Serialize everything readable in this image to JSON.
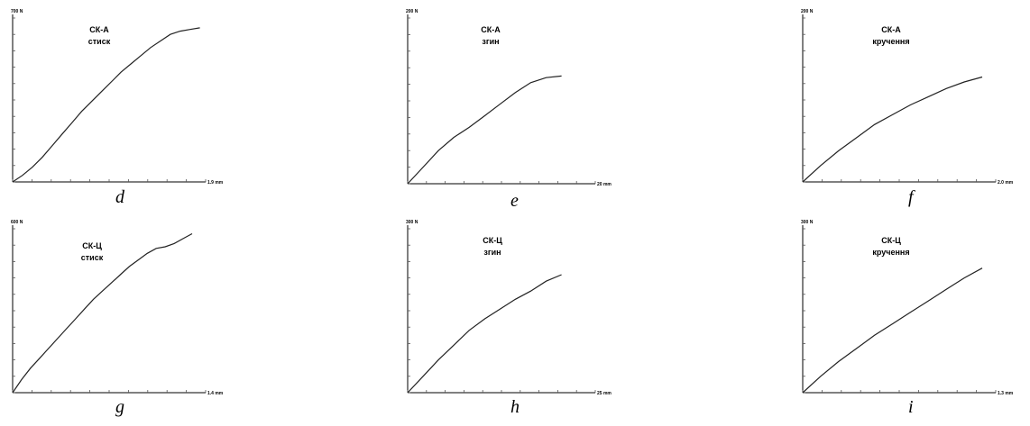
{
  "chart_data": [
    {
      "id": "d",
      "type": "line",
      "caption": "d",
      "title": "СК-А",
      "subtitle": "стиск",
      "y_max_label": "700 N",
      "x_max_label": "1.9 mm",
      "x": [
        0,
        0.1,
        0.2,
        0.3,
        0.4,
        0.5,
        0.6,
        0.7,
        0.8,
        0.9,
        1.0,
        1.1,
        1.2,
        1.3,
        1.4,
        1.5,
        1.6,
        1.7,
        1.8,
        1.9
      ],
      "y": [
        0,
        0.04,
        0.09,
        0.15,
        0.22,
        0.29,
        0.36,
        0.43,
        0.49,
        0.55,
        0.61,
        0.67,
        0.72,
        0.77,
        0.82,
        0.86,
        0.9,
        0.92,
        0.93,
        0.94
      ]
    },
    {
      "id": "e",
      "type": "line",
      "caption": "e",
      "title": "СК-А",
      "subtitle": "згин",
      "y_max_label": "200 N",
      "x_max_label": "20 mm",
      "x": [
        0,
        0.1,
        0.2,
        0.3,
        0.4,
        0.5,
        0.6,
        0.7,
        0.8,
        0.9,
        1.0
      ],
      "y": [
        0,
        0.1,
        0.2,
        0.28,
        0.34,
        0.41,
        0.48,
        0.55,
        0.61,
        0.64,
        0.65
      ]
    },
    {
      "id": "f",
      "type": "line",
      "caption": "f",
      "title": "СК-А",
      "subtitle": "кручення",
      "y_max_label": "200 N",
      "x_max_label": "2.0 mm",
      "x": [
        0,
        0.1,
        0.2,
        0.3,
        0.4,
        0.5,
        0.6,
        0.7,
        0.8,
        0.9,
        1.0
      ],
      "y": [
        0,
        0.1,
        0.19,
        0.27,
        0.35,
        0.41,
        0.47,
        0.52,
        0.57,
        0.61,
        0.64
      ]
    },
    {
      "id": "g",
      "type": "line",
      "caption": "g",
      "title": "СК-Ц",
      "subtitle": "стиск",
      "y_max_label": "600 N",
      "x_max_label": "1.4 mm",
      "x": [
        0,
        0.05,
        0.1,
        0.15,
        0.2,
        0.25,
        0.3,
        0.35,
        0.4,
        0.45,
        0.5,
        0.55,
        0.6,
        0.65,
        0.7,
        0.75,
        0.8,
        0.85,
        0.9,
        0.95,
        1.0
      ],
      "y": [
        0,
        0.08,
        0.15,
        0.21,
        0.27,
        0.33,
        0.39,
        0.45,
        0.51,
        0.57,
        0.62,
        0.67,
        0.72,
        0.77,
        0.81,
        0.85,
        0.88,
        0.89,
        0.91,
        0.94,
        0.97
      ]
    },
    {
      "id": "h",
      "type": "line",
      "caption": "h",
      "title": "СК-Ц",
      "subtitle": "згин",
      "y_max_label": "300 N",
      "x_max_label": "25 mm",
      "x": [
        0,
        0.1,
        0.2,
        0.3,
        0.4,
        0.5,
        0.6,
        0.7,
        0.8,
        0.9,
        1.0
      ],
      "y": [
        0,
        0.1,
        0.2,
        0.29,
        0.38,
        0.45,
        0.51,
        0.57,
        0.62,
        0.68,
        0.72
      ]
    },
    {
      "id": "i",
      "type": "line",
      "caption": "i",
      "title": "СК-Ц",
      "subtitle": "кручення",
      "y_max_label": "300 N",
      "x_max_label": "1.3 mm",
      "x": [
        0,
        0.1,
        0.2,
        0.3,
        0.4,
        0.5,
        0.6,
        0.7,
        0.8,
        0.9,
        1.0
      ],
      "y": [
        0,
        0.1,
        0.19,
        0.27,
        0.35,
        0.42,
        0.49,
        0.56,
        0.63,
        0.7,
        0.76
      ]
    }
  ]
}
